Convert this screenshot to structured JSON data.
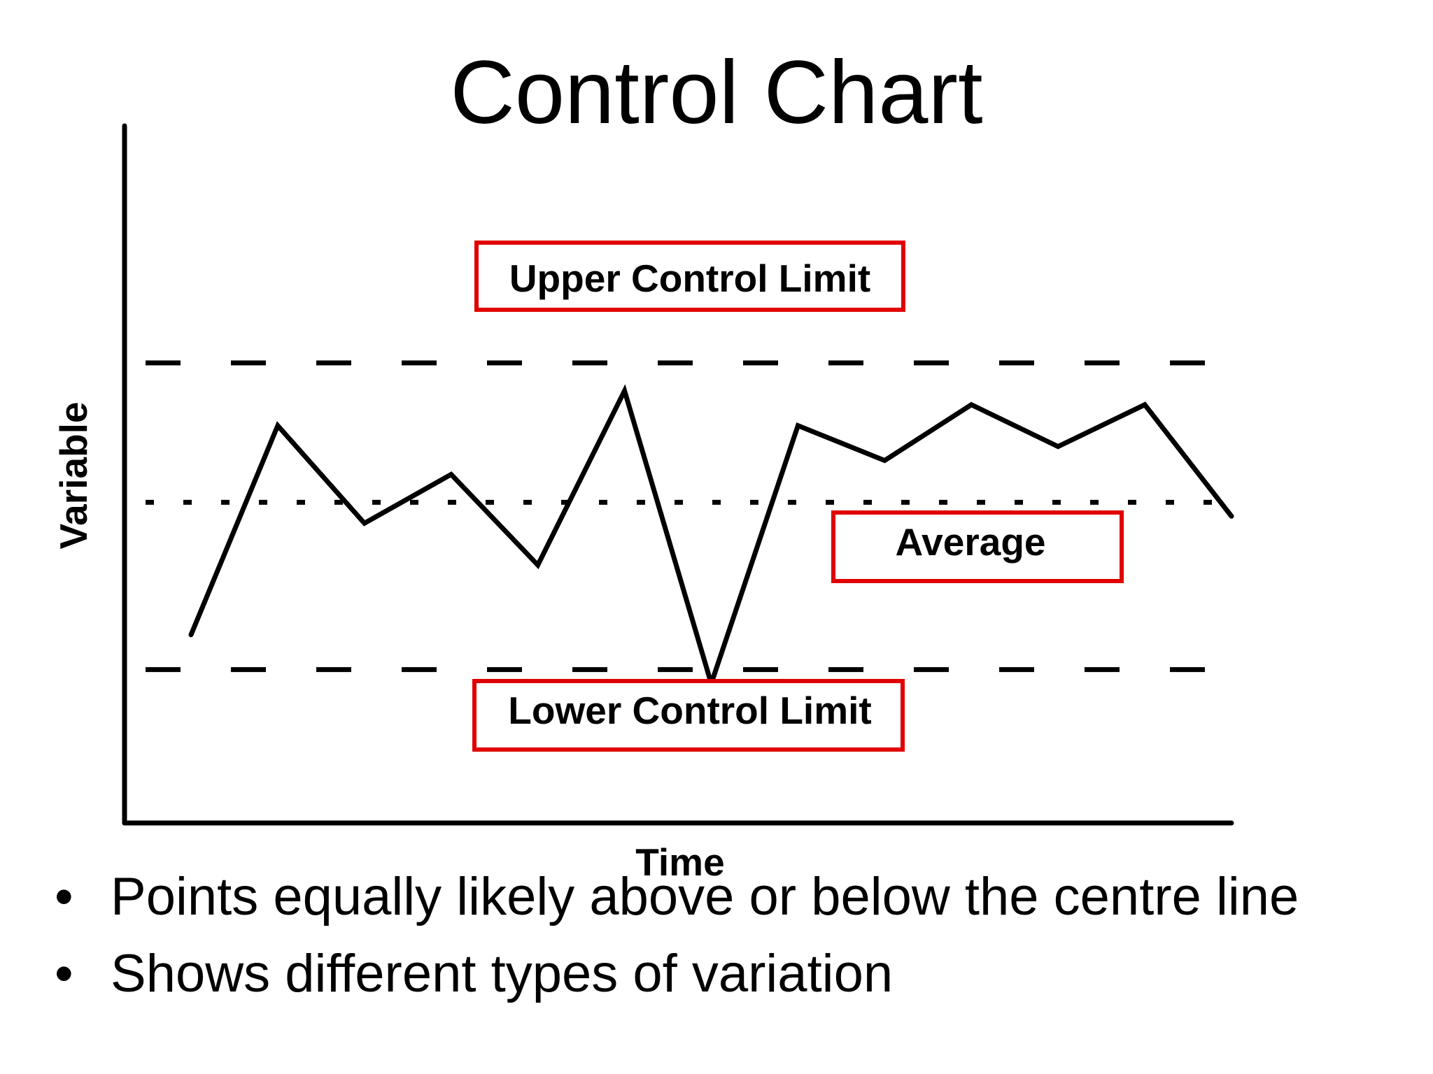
{
  "slide": {
    "title": "Control Chart",
    "bullets": [
      "Points equally likely above or below the centre line",
      "Shows different types of variation"
    ],
    "bullet_glyph": "•"
  },
  "chart_data": {
    "type": "line",
    "title": "Control Chart",
    "xlabel": "Time",
    "ylabel": "Variable",
    "ylim": [
      0,
      10
    ],
    "grid": false,
    "series": [
      {
        "values": [
          2.7,
          5.7,
          4.3,
          5.0,
          3.7,
          6.2,
          2.0,
          5.7,
          5.2,
          6.0,
          5.4,
          6.0,
          4.4
        ]
      }
    ],
    "reference_lines": [
      {
        "label": "Upper Control Limit",
        "value": 6.6,
        "style": "dashed"
      },
      {
        "label": "Average",
        "value": 4.6,
        "style": "dotted"
      },
      {
        "label": "Lower Control Limit",
        "value": 2.2,
        "style": "dashed"
      }
    ],
    "colors": {
      "line": "#000000",
      "label_border": "#e00000"
    }
  }
}
